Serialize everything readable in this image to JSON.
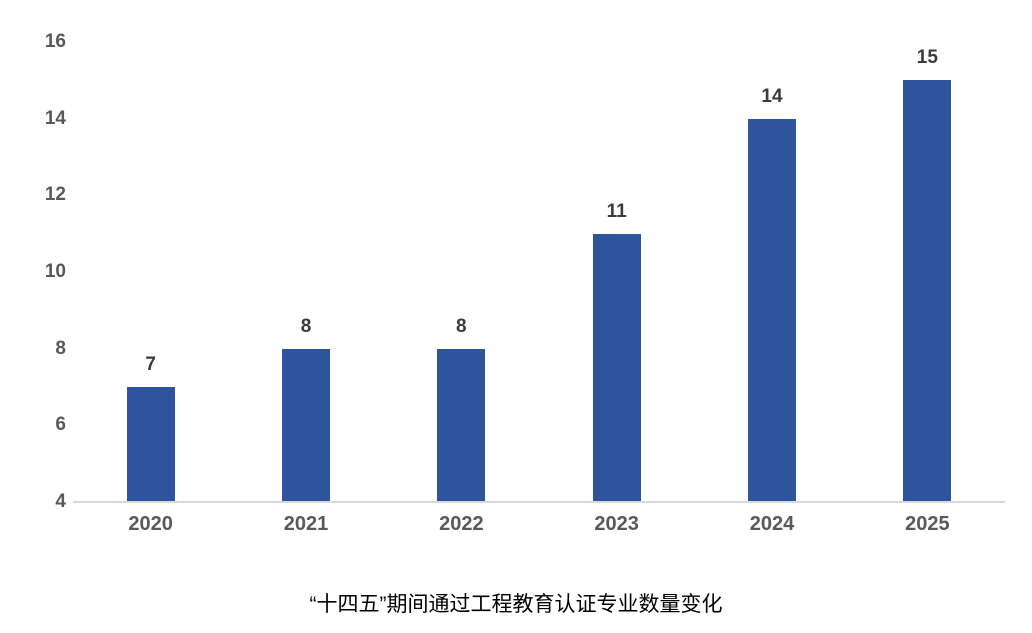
{
  "chart_data": {
    "type": "bar",
    "categories": [
      "2020",
      "2021",
      "2022",
      "2023",
      "2024",
      "2025"
    ],
    "values": [
      7,
      8,
      8,
      11,
      14,
      15
    ],
    "title": "“十四五”期间通过工程教育认证专业数量变化",
    "xlabel": "",
    "ylabel": "",
    "ylim": [
      4,
      16
    ],
    "yticks": [
      4,
      6,
      8,
      10,
      12,
      14,
      16
    ],
    "grid": false,
    "legend": "none",
    "data_labels": true,
    "colors": {
      "bar": "#2E549E",
      "value_label": "#3B3B3B",
      "axis_text": "#595959",
      "baseline": "#D9D9D9",
      "title": "#000000",
      "background": "#FFFFFF"
    }
  }
}
